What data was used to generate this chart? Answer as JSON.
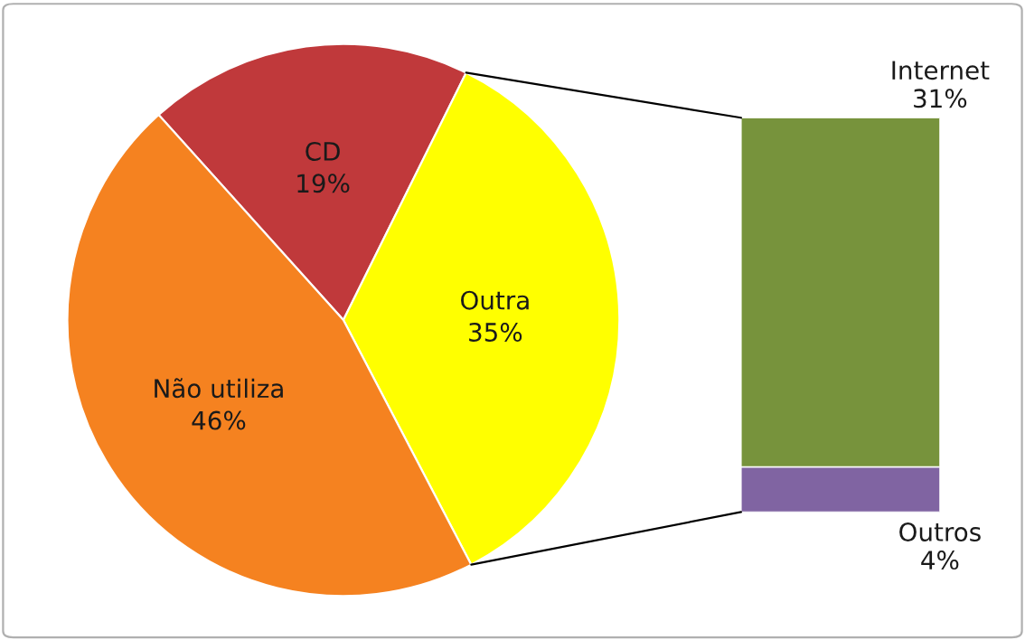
{
  "chart_data": [
    {
      "type": "pie",
      "categories": [
        "CD",
        "Outra",
        "Não utiliza"
      ],
      "values": [
        19,
        35,
        46
      ],
      "value_labels": [
        "19%",
        "35%",
        "46%"
      ],
      "colors": [
        "#c0393b",
        "#ffff00",
        "#f58220"
      ]
    },
    {
      "type": "bar",
      "stacked": true,
      "categories": [
        null
      ],
      "series": [
        {
          "name": "Outros",
          "color": "#8064a2",
          "values": [
            4
          ],
          "value_labels": [
            "4%"
          ]
        },
        {
          "name": "Internet",
          "color": "#77933c",
          "values": [
            31
          ],
          "value_labels": [
            "31%"
          ]
        }
      ]
    }
  ]
}
